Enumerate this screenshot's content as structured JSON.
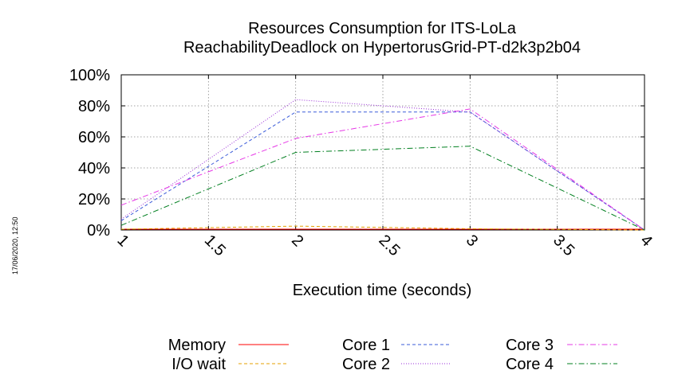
{
  "chart_data": {
    "type": "line",
    "title": [
      "Resources Consumption for ITS-LoLa",
      "ReachabilityDeadlock on HypertorusGrid-PT-d2k3p2b04"
    ],
    "xlabel": "Execution time (seconds)",
    "ylabel": "",
    "xlim": [
      1,
      4
    ],
    "ylim": [
      0,
      100
    ],
    "x_ticks": [
      "1",
      "1.5",
      "2",
      "2.5",
      "3",
      "3.5",
      "4"
    ],
    "y_ticks": [
      "0%",
      "20%",
      "40%",
      "60%",
      "80%",
      "100%"
    ],
    "grid": true,
    "legend_position": "bottom",
    "x": [
      1,
      2,
      3,
      4
    ],
    "series": [
      {
        "name": "Memory",
        "color": "#ff0000",
        "dash": "solid",
        "values": [
          0.5,
          0.5,
          0.5,
          0.5
        ]
      },
      {
        "name": "I/O wait",
        "color": "#e6a000",
        "dash": "dashed",
        "values": [
          0.5,
          2.5,
          0.8,
          0
        ]
      },
      {
        "name": "Core 1",
        "color": "#3a5bd9",
        "dash": "dashed",
        "values": [
          6,
          76,
          76,
          0
        ]
      },
      {
        "name": "Core 2",
        "color": "#9a2ed8",
        "dash": "dotted",
        "values": [
          7,
          84,
          76,
          0
        ]
      },
      {
        "name": "Core 3",
        "color": "#e638e6",
        "dash": "dashdot",
        "values": [
          16,
          59,
          78,
          0
        ]
      },
      {
        "name": "Core 4",
        "color": "#007f1f",
        "dash": "dashdot",
        "values": [
          3,
          50,
          54,
          0
        ]
      }
    ]
  },
  "timestamp": "17/06/2020, 12:50"
}
